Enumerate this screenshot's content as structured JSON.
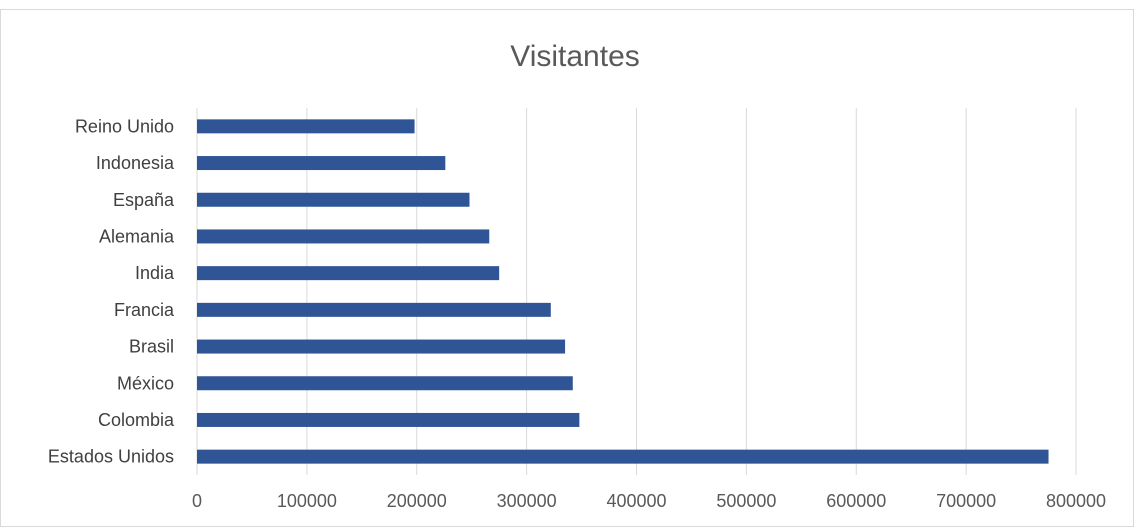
{
  "chart_data": {
    "type": "bar",
    "orientation": "horizontal",
    "title": "Visitantes",
    "xlabel": "",
    "ylabel": "",
    "categories": [
      "Estados Unidos",
      "Colombia",
      "México",
      "Brasil",
      "Francia",
      "India",
      "Alemania",
      "España",
      "Indonesia",
      "Reino Unido"
    ],
    "values": [
      775000,
      348000,
      342000,
      335000,
      322000,
      275000,
      266000,
      248000,
      226000,
      198000
    ],
    "xlim": [
      0,
      800000
    ],
    "ticks": [
      "0",
      "100000",
      "200000",
      "300000",
      "400000",
      "500000",
      "600000",
      "700000",
      "800000"
    ],
    "grid": true,
    "legend": "none",
    "bar_color": "#2f5597"
  }
}
